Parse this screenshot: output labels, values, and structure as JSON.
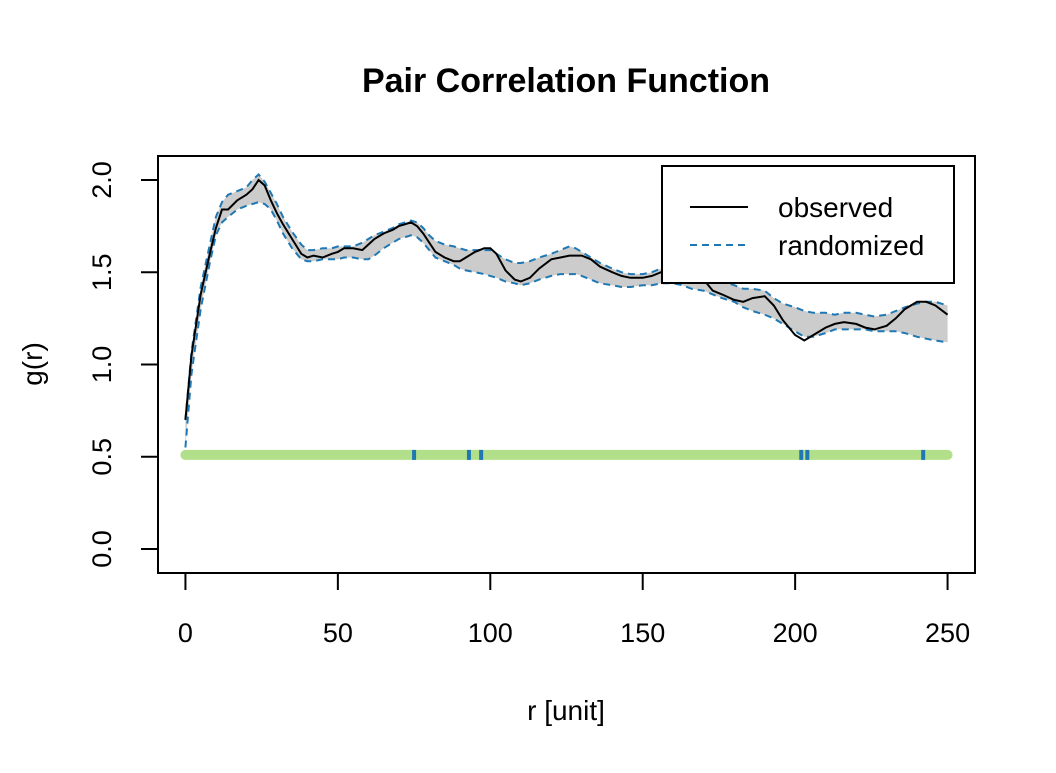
{
  "chart_data": {
    "type": "line",
    "title": "Pair Correlation Function",
    "xlabel": "r [unit]",
    "ylabel": "g(r)",
    "xlim": [
      -9,
      259
    ],
    "ylim": [
      -0.13,
      2.13
    ],
    "xticks": [
      0,
      50,
      100,
      150,
      200,
      250
    ],
    "yticks": [
      0.0,
      0.5,
      1.0,
      1.5,
      2.0
    ],
    "xtick_labels": [
      "0",
      "50",
      "100",
      "150",
      "200",
      "250"
    ],
    "ytick_labels": [
      "0.0",
      "0.5",
      "1.0",
      "1.5",
      "2.0"
    ],
    "grid": false,
    "legend": {
      "position": "top-right",
      "entries": [
        {
          "name": "observed",
          "color": "#000000",
          "style": "solid"
        },
        {
          "name": "randomized",
          "color": "#1f78b4",
          "style": "dashed"
        }
      ]
    },
    "colors": {
      "observed": "#000000",
      "envelope_line": "#1f78b4",
      "envelope_fill": "#cccccc",
      "classification_normal": "#b2df8a",
      "classification_outside": "#1f78b4"
    },
    "series": [
      {
        "name": "observed",
        "x": [
          0,
          2,
          5,
          8,
          10,
          12,
          14,
          17,
          20,
          22,
          24,
          26,
          28,
          30,
          32,
          35,
          38,
          40,
          42,
          45,
          48,
          50,
          52,
          55,
          58,
          60,
          62,
          65,
          68,
          70,
          72,
          74,
          76,
          78,
          80,
          82,
          85,
          88,
          90,
          92,
          95,
          98,
          100,
          102,
          105,
          108,
          110,
          113,
          116,
          120,
          123,
          126,
          128,
          130,
          133,
          136,
          140,
          143,
          146,
          150,
          153,
          156,
          160,
          163,
          166,
          170,
          173,
          176,
          180,
          183,
          186,
          190,
          193,
          196,
          200,
          203,
          206,
          210,
          213,
          216,
          220,
          223,
          226,
          230,
          233,
          236,
          240,
          243,
          246,
          250
        ],
        "y": [
          0.7,
          1.05,
          1.38,
          1.6,
          1.74,
          1.84,
          1.84,
          1.89,
          1.92,
          1.95,
          2.0,
          1.97,
          1.89,
          1.82,
          1.76,
          1.68,
          1.6,
          1.58,
          1.59,
          1.58,
          1.6,
          1.61,
          1.63,
          1.63,
          1.62,
          1.65,
          1.68,
          1.71,
          1.73,
          1.75,
          1.76,
          1.77,
          1.75,
          1.71,
          1.66,
          1.61,
          1.58,
          1.56,
          1.56,
          1.58,
          1.61,
          1.63,
          1.63,
          1.6,
          1.51,
          1.46,
          1.45,
          1.47,
          1.52,
          1.57,
          1.58,
          1.59,
          1.59,
          1.59,
          1.57,
          1.53,
          1.5,
          1.48,
          1.47,
          1.47,
          1.48,
          1.5,
          1.51,
          1.52,
          1.5,
          1.46,
          1.4,
          1.38,
          1.35,
          1.34,
          1.36,
          1.37,
          1.32,
          1.24,
          1.16,
          1.13,
          1.16,
          1.2,
          1.22,
          1.23,
          1.22,
          1.2,
          1.19,
          1.21,
          1.25,
          1.3,
          1.34,
          1.34,
          1.32,
          1.27
        ]
      },
      {
        "name": "randomized upper",
        "x": [
          0,
          2,
          5,
          8,
          10,
          12,
          14,
          17,
          20,
          22,
          24,
          26,
          28,
          30,
          32,
          35,
          38,
          40,
          42,
          45,
          48,
          50,
          52,
          55,
          58,
          60,
          62,
          65,
          68,
          70,
          72,
          74,
          76,
          78,
          80,
          82,
          85,
          88,
          90,
          92,
          95,
          98,
          100,
          102,
          105,
          108,
          110,
          113,
          116,
          120,
          123,
          126,
          128,
          130,
          133,
          136,
          140,
          143,
          146,
          150,
          153,
          156,
          160,
          163,
          166,
          170,
          173,
          176,
          180,
          183,
          186,
          190,
          193,
          196,
          200,
          203,
          206,
          210,
          213,
          216,
          220,
          223,
          226,
          230,
          233,
          236,
          240,
          243,
          246,
          250
        ],
        "y": [
          0.7,
          1.07,
          1.42,
          1.65,
          1.8,
          1.88,
          1.92,
          1.94,
          1.96,
          2.0,
          2.03,
          1.99,
          1.93,
          1.87,
          1.8,
          1.72,
          1.65,
          1.62,
          1.62,
          1.63,
          1.63,
          1.64,
          1.64,
          1.64,
          1.66,
          1.68,
          1.7,
          1.72,
          1.74,
          1.76,
          1.77,
          1.78,
          1.77,
          1.74,
          1.7,
          1.67,
          1.65,
          1.64,
          1.63,
          1.62,
          1.62,
          1.62,
          1.62,
          1.6,
          1.57,
          1.55,
          1.55,
          1.56,
          1.58,
          1.6,
          1.62,
          1.64,
          1.63,
          1.61,
          1.58,
          1.55,
          1.52,
          1.5,
          1.49,
          1.49,
          1.5,
          1.52,
          1.53,
          1.54,
          1.53,
          1.5,
          1.48,
          1.45,
          1.43,
          1.41,
          1.41,
          1.4,
          1.36,
          1.33,
          1.31,
          1.29,
          1.28,
          1.28,
          1.27,
          1.28,
          1.28,
          1.27,
          1.26,
          1.27,
          1.29,
          1.31,
          1.33,
          1.34,
          1.34,
          1.32
        ]
      },
      {
        "name": "randomized lower",
        "x": [
          0,
          2,
          5,
          8,
          10,
          12,
          14,
          17,
          20,
          22,
          24,
          26,
          28,
          30,
          32,
          35,
          38,
          40,
          42,
          45,
          48,
          50,
          52,
          55,
          58,
          60,
          62,
          65,
          68,
          70,
          72,
          74,
          76,
          78,
          80,
          82,
          85,
          88,
          90,
          92,
          95,
          98,
          100,
          102,
          105,
          108,
          110,
          113,
          116,
          120,
          123,
          126,
          128,
          130,
          133,
          136,
          140,
          143,
          146,
          150,
          153,
          156,
          160,
          163,
          166,
          170,
          173,
          176,
          180,
          183,
          186,
          190,
          193,
          196,
          200,
          203,
          206,
          210,
          213,
          216,
          220,
          223,
          226,
          230,
          233,
          236,
          240,
          243,
          246,
          250
        ],
        "y": [
          0.55,
          0.95,
          1.3,
          1.55,
          1.7,
          1.77,
          1.8,
          1.84,
          1.86,
          1.87,
          1.88,
          1.87,
          1.84,
          1.78,
          1.71,
          1.63,
          1.57,
          1.56,
          1.56,
          1.57,
          1.57,
          1.57,
          1.58,
          1.58,
          1.57,
          1.57,
          1.59,
          1.63,
          1.66,
          1.68,
          1.69,
          1.7,
          1.69,
          1.66,
          1.62,
          1.58,
          1.56,
          1.54,
          1.52,
          1.51,
          1.5,
          1.49,
          1.48,
          1.47,
          1.45,
          1.44,
          1.43,
          1.44,
          1.46,
          1.48,
          1.49,
          1.49,
          1.49,
          1.48,
          1.46,
          1.44,
          1.43,
          1.42,
          1.42,
          1.43,
          1.43,
          1.44,
          1.44,
          1.43,
          1.41,
          1.4,
          1.38,
          1.36,
          1.34,
          1.31,
          1.29,
          1.27,
          1.25,
          1.22,
          1.18,
          1.15,
          1.15,
          1.17,
          1.19,
          1.19,
          1.19,
          1.19,
          1.18,
          1.18,
          1.18,
          1.17,
          1.15,
          1.14,
          1.13,
          1.12
        ]
      }
    ],
    "classification": {
      "y": 0.51,
      "x_range": [
        0,
        250
      ],
      "outside_envelope_x": [
        75,
        93,
        97,
        202,
        204,
        242
      ]
    }
  }
}
